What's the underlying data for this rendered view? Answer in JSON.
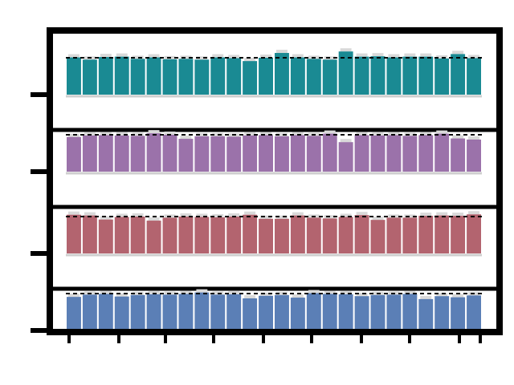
{
  "chart_data": {
    "type": "bar",
    "title": "",
    "xlabel": "",
    "ylabel": "",
    "y_tick_labels": [
      "",
      "",
      "",
      ""
    ],
    "x_tick_labels": [
      "",
      "",
      "",
      "",
      "",
      "",
      "",
      "",
      "",
      ""
    ],
    "grid": false,
    "stacked_panels": true,
    "bar_count": 26,
    "rows": [
      {
        "color": "#5b7fb6",
        "reference_line": true,
        "values": [
          0.91,
          0.97,
          0.99,
          0.92,
          0.96,
          0.98,
          0.97,
          0.99,
          1.03,
          0.97,
          0.98,
          0.87,
          0.94,
          0.96,
          0.89,
          1.01,
          0.99,
          0.98,
          0.93,
          0.96,
          0.97,
          0.99,
          0.85,
          0.93,
          0.9,
          0.95
        ]
      },
      {
        "color": "#b3646f",
        "reference_line": true,
        "values": [
          1.05,
          1.03,
          0.92,
          0.99,
          1.0,
          0.89,
          0.97,
          1.0,
          0.99,
          0.98,
          1.0,
          1.05,
          0.94,
          0.94,
          1.03,
          0.97,
          0.95,
          0.99,
          1.04,
          0.91,
          0.97,
          0.97,
          1.02,
          1.03,
          1.02,
          1.06
        ]
      },
      {
        "color": "#9b72aa",
        "reference_line": true,
        "values": [
          0.94,
          0.98,
          0.99,
          0.98,
          0.97,
          1.04,
          1.0,
          0.89,
          0.96,
          0.96,
          0.95,
          0.98,
          0.99,
          0.96,
          0.99,
          0.97,
          1.03,
          0.8,
          0.99,
          0.98,
          0.99,
          0.97,
          0.99,
          1.03,
          0.9,
          0.87
        ]
      },
      {
        "color": "#1a8a93",
        "reference_line": true,
        "values": [
          1.01,
          0.95,
          1.02,
          1.03,
          0.97,
          1.01,
          0.96,
          0.97,
          0.95,
          1.01,
          0.99,
          0.91,
          1.0,
          1.13,
          1.01,
          0.97,
          0.95,
          1.17,
          1.03,
          1.04,
          1.01,
          1.03,
          1.03,
          0.98,
          1.1,
          0.99
        ]
      }
    ]
  }
}
